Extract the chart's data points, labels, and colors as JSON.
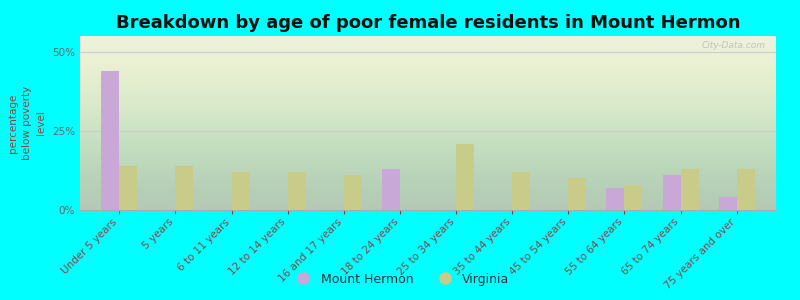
{
  "title": "Breakdown by age of poor female residents in Mount Hermon",
  "categories": [
    "Under 5 years",
    "5 years",
    "6 to 11 years",
    "12 to 14 years",
    "16 and 17 years",
    "18 to 24 years",
    "25 to 34 years",
    "35 to 44 years",
    "45 to 54 years",
    "55 to 64 years",
    "65 to 74 years",
    "75 years and over"
  ],
  "mount_hermon": [
    44,
    0,
    0,
    0,
    0,
    13,
    0,
    0,
    0,
    7,
    11,
    4
  ],
  "virginia_all": [
    14,
    14,
    12,
    12,
    11,
    0,
    21,
    12,
    10,
    8,
    13,
    13
  ],
  "mount_hermon_color": "#c9a8d8",
  "virginia_color": "#c8cc88",
  "background_color": "#00ffff",
  "ylabel": "percentage\nbelow poverty\nlevel",
  "ylim": [
    0,
    55
  ],
  "yticks": [
    0,
    25,
    50
  ],
  "watermark": "City-Data.com",
  "bar_width": 0.32,
  "title_fontsize": 13,
  "axis_label_fontsize": 7.5,
  "tick_fontsize": 7.5,
  "legend_fontsize": 9,
  "legend_label_color": "#333333"
}
